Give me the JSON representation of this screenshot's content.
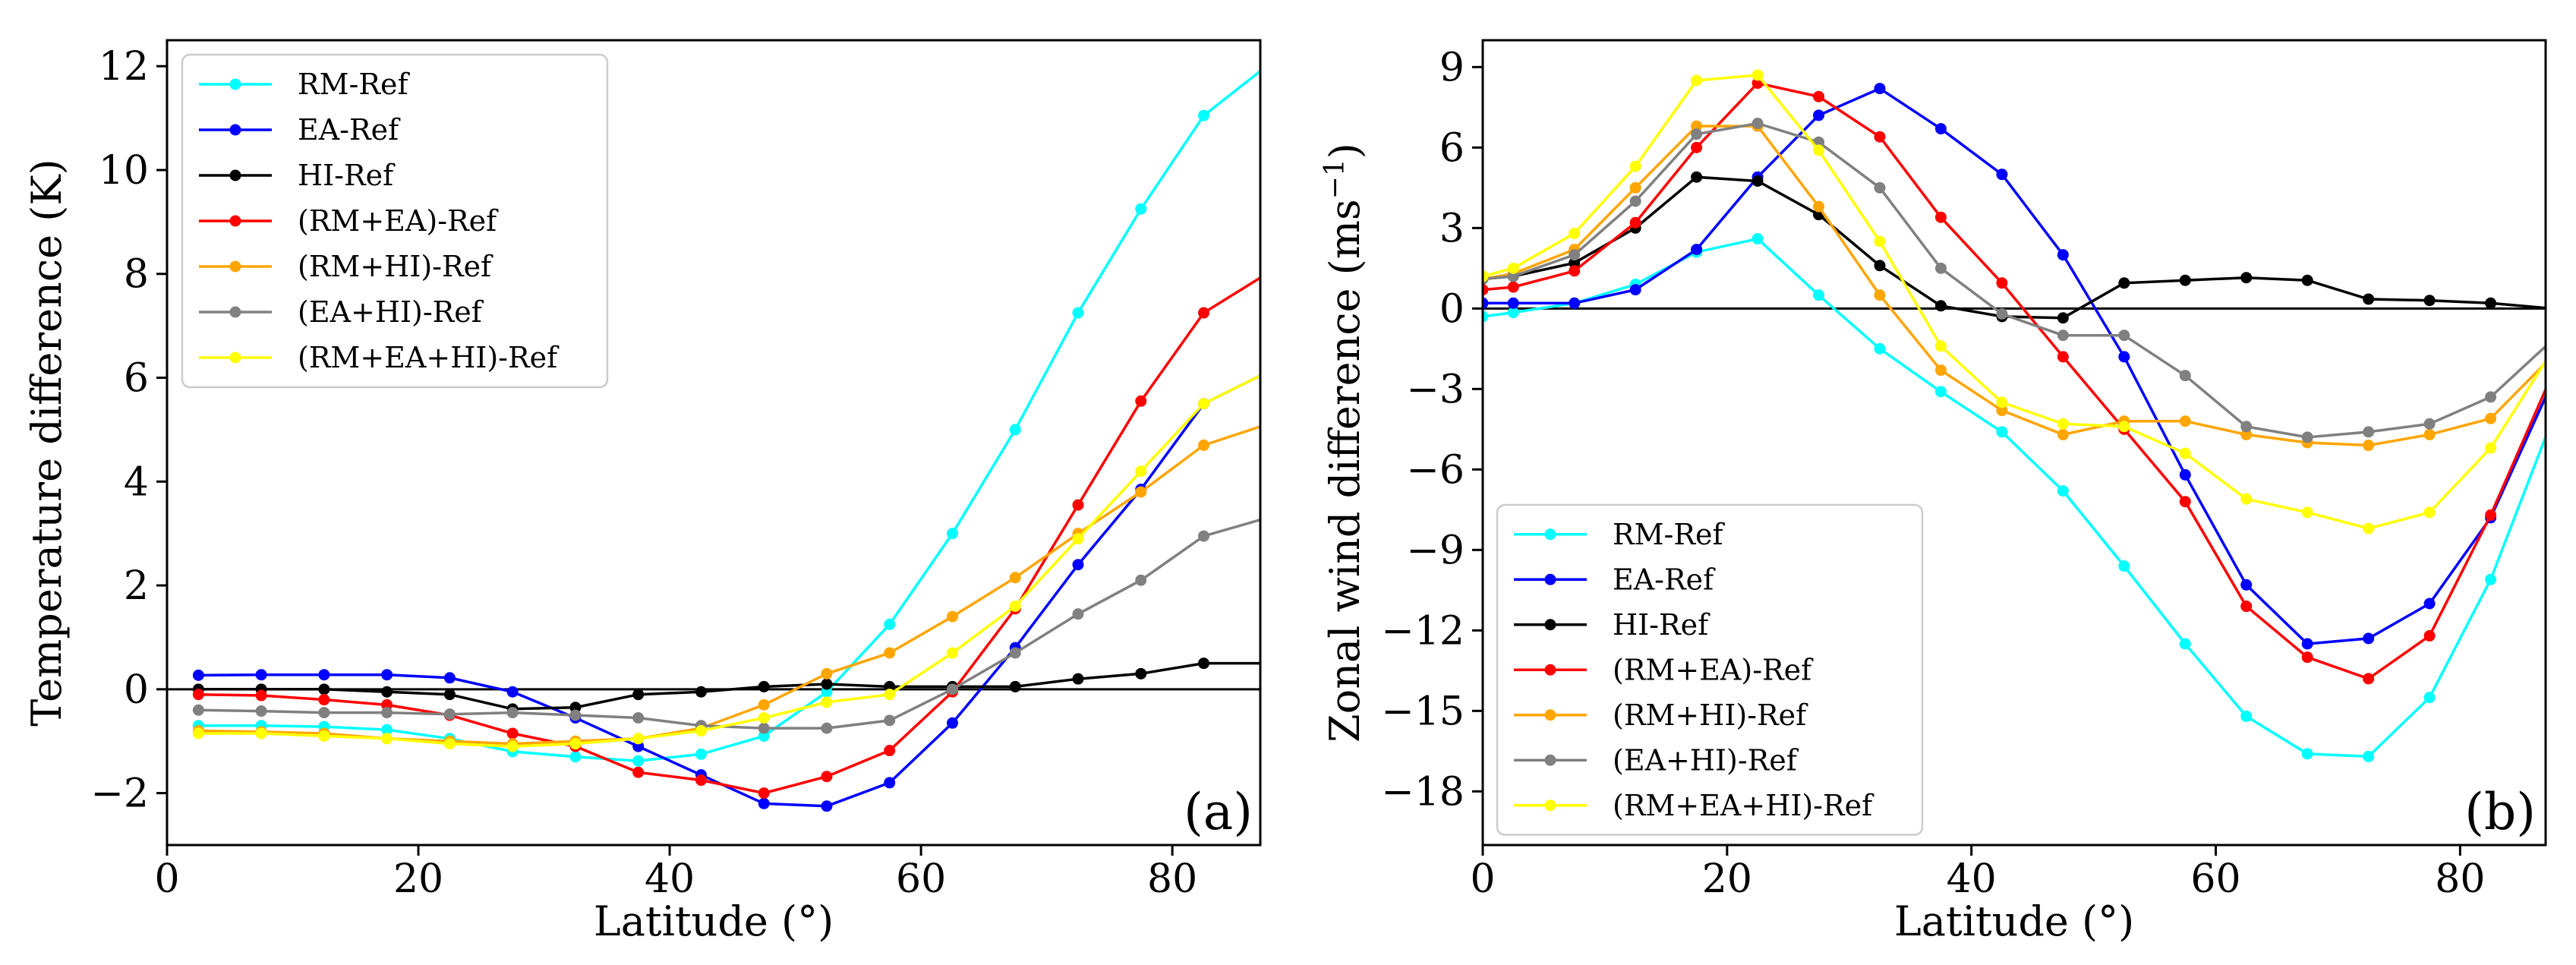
{
  "chart_data": [
    {
      "type": "line",
      "panel_label": "(a)",
      "xlabel": "Latitude (°)",
      "ylabel": "Temperature difference (K)",
      "xlim": [
        0,
        87
      ],
      "ylim": [
        -3,
        12.5
      ],
      "xticks": [
        0,
        20,
        40,
        60,
        80
      ],
      "yticks": [
        -2,
        0,
        2,
        4,
        6,
        8,
        10,
        12
      ],
      "ytick_labels": [
        "−2",
        "0",
        "2",
        "4",
        "6",
        "8",
        "10",
        "12"
      ],
      "legend_position": "top-left",
      "x": [
        2.5,
        7.5,
        12.5,
        17.5,
        22.5,
        27.5,
        32.5,
        37.5,
        42.5,
        47.5,
        52.5,
        57.5,
        62.5,
        67.5,
        72.5,
        77.5,
        82.5,
        87.5
      ],
      "series": [
        {
          "name": "RM-Ref",
          "color": "#00ffff",
          "values": [
            -0.7,
            -0.7,
            -0.72,
            -0.78,
            -0.95,
            -1.2,
            -1.3,
            -1.38,
            -1.25,
            -0.9,
            -0.05,
            1.25,
            3.0,
            5.0,
            7.25,
            9.25,
            11.05,
            12.0
          ]
        },
        {
          "name": "EA-Ref",
          "color": "#0000ff",
          "values": [
            0.27,
            0.28,
            0.28,
            0.28,
            0.22,
            -0.05,
            -0.55,
            -1.1,
            -1.65,
            -2.2,
            -2.25,
            -1.8,
            -0.65,
            0.8,
            2.4,
            3.85,
            5.5,
            6.1
          ]
        },
        {
          "name": "HI-Ref",
          "color": "#000000",
          "values": [
            0.0,
            0.0,
            0.0,
            -0.05,
            -0.1,
            -0.38,
            -0.35,
            -0.1,
            -0.05,
            0.05,
            0.1,
            0.05,
            0.05,
            0.05,
            0.2,
            0.3,
            0.5,
            0.5
          ]
        },
        {
          "name": "(RM+EA)-Ref",
          "color": "#ff0000",
          "values": [
            -0.1,
            -0.12,
            -0.2,
            -0.3,
            -0.5,
            -0.85,
            -1.1,
            -1.6,
            -1.75,
            -2.0,
            -1.68,
            -1.18,
            -0.05,
            1.55,
            3.55,
            5.55,
            7.25,
            8.0
          ]
        },
        {
          "name": "(RM+HI)-Ref",
          "color": "#ffa500",
          "values": [
            -0.8,
            -0.82,
            -0.85,
            -0.95,
            -1.0,
            -1.05,
            -1.0,
            -0.95,
            -0.75,
            -0.3,
            0.3,
            0.7,
            1.4,
            2.15,
            3.0,
            3.8,
            4.7,
            5.1
          ]
        },
        {
          "name": "(EA+HI)-Ref",
          "color": "#808080",
          "values": [
            -0.4,
            -0.42,
            -0.45,
            -0.45,
            -0.48,
            -0.45,
            -0.5,
            -0.55,
            -0.7,
            -0.75,
            -0.75,
            -0.6,
            0.0,
            0.7,
            1.45,
            2.1,
            2.95,
            3.3
          ]
        },
        {
          "name": "(RM+EA+HI)-Ref",
          "color": "#ffff00",
          "values": [
            -0.85,
            -0.85,
            -0.9,
            -0.95,
            -1.05,
            -1.1,
            -1.05,
            -0.95,
            -0.8,
            -0.55,
            -0.25,
            -0.1,
            0.7,
            1.6,
            2.9,
            4.2,
            5.5,
            6.1
          ]
        }
      ]
    },
    {
      "type": "line",
      "panel_label": "(b)",
      "xlabel": "Latitude (°)",
      "ylabel": "Zonal wind difference (ms",
      "ylabel_superscript": "−1",
      "ylabel_suffix": ")",
      "xlim": [
        0,
        87
      ],
      "ylim": [
        -20,
        10
      ],
      "xticks": [
        0,
        20,
        40,
        60,
        80
      ],
      "yticks": [
        -18,
        -15,
        -12,
        -9,
        -6,
        -3,
        0,
        3,
        6,
        9
      ],
      "ytick_labels": [
        "−18",
        "−15",
        "−12",
        "−9",
        "−6",
        "−3",
        "0",
        "3",
        "6",
        "9"
      ],
      "legend_position": "lower-left",
      "x": [
        0,
        2.5,
        7.5,
        12.5,
        17.5,
        22.5,
        27.5,
        32.5,
        37.5,
        42.5,
        47.5,
        52.5,
        57.5,
        62.5,
        67.5,
        72.5,
        77.5,
        82.5,
        87.5
      ],
      "series": [
        {
          "name": "RM-Ref",
          "color": "#00ffff",
          "values": [
            -0.3,
            -0.15,
            0.2,
            0.9,
            2.1,
            2.6,
            0.5,
            -1.5,
            -3.1,
            -4.6,
            -6.8,
            -9.6,
            -12.5,
            -15.2,
            -16.6,
            -16.7,
            -14.5,
            -10.1,
            -4.2
          ]
        },
        {
          "name": "EA-Ref",
          "color": "#0000ff",
          "values": [
            0.2,
            0.2,
            0.2,
            0.7,
            2.2,
            4.9,
            7.2,
            8.2,
            6.7,
            5.0,
            2.0,
            -1.8,
            -6.2,
            -10.3,
            -12.5,
            -12.3,
            -11.0,
            -7.8,
            -2.8
          ]
        },
        {
          "name": "HI-Ref",
          "color": "#000000",
          "values": [
            1.1,
            1.2,
            1.7,
            3.0,
            4.9,
            4.75,
            3.5,
            1.6,
            0.1,
            -0.3,
            -0.35,
            0.95,
            1.05,
            1.15,
            1.05,
            0.35,
            0.3,
            0.2,
            0.0
          ]
        },
        {
          "name": "(RM+EA)-Ref",
          "color": "#ff0000",
          "values": [
            0.7,
            0.8,
            1.4,
            3.2,
            6.0,
            8.4,
            7.9,
            6.4,
            3.4,
            0.95,
            -1.8,
            -4.5,
            -7.2,
            -11.1,
            -13.0,
            -13.8,
            -12.2,
            -7.7,
            -2.5
          ]
        },
        {
          "name": "(RM+HI)-Ref",
          "color": "#ffa500",
          "values": [
            1.1,
            1.3,
            2.2,
            4.5,
            6.8,
            6.8,
            3.8,
            0.5,
            -2.3,
            -3.8,
            -4.7,
            -4.2,
            -4.2,
            -4.7,
            -5.0,
            -5.1,
            -4.7,
            -4.1,
            -1.8
          ]
        },
        {
          "name": "(EA+HI)-Ref",
          "color": "#808080",
          "values": [
            1.1,
            1.2,
            2.0,
            4.0,
            6.5,
            6.9,
            6.2,
            4.5,
            1.5,
            -0.2,
            -1.0,
            -1.0,
            -2.5,
            -4.4,
            -4.8,
            -4.6,
            -4.3,
            -3.3,
            -1.2
          ]
        },
        {
          "name": "(RM+EA+HI)-Ref",
          "color": "#ffff00",
          "values": [
            1.2,
            1.5,
            2.8,
            5.3,
            8.5,
            8.7,
            5.9,
            2.5,
            -1.4,
            -3.5,
            -4.3,
            -4.4,
            -5.4,
            -7.1,
            -7.6,
            -8.2,
            -7.6,
            -5.2,
            -1.6
          ]
        }
      ]
    }
  ]
}
